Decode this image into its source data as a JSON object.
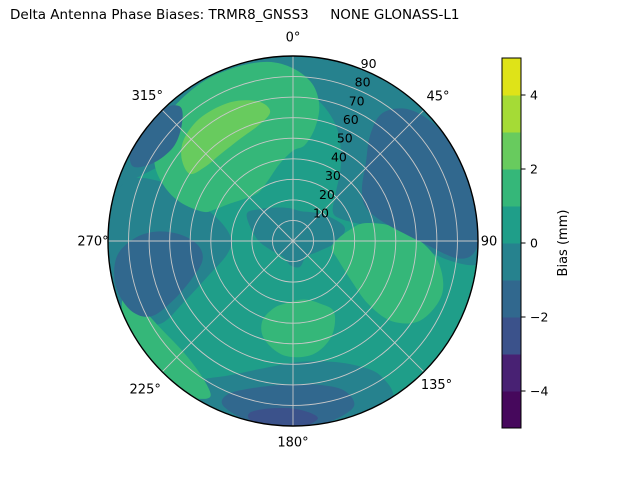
{
  "title": "Delta Antenna Phase Biases: TRMR8_GNSS3     NONE GLONASS-L1",
  "chart_data": {
    "type": "heatmap",
    "subtype": "filled-contour-polar",
    "title": "Delta Antenna Phase Biases: TRMR8_GNSS3     NONE GLONASS-L1",
    "angular_axis": {
      "zero_position": "top",
      "direction": "clockwise",
      "tick_labels": [
        "0°",
        "45°",
        "90",
        "135°",
        "180°",
        "225°",
        "270°",
        "315°"
      ],
      "tick_angles_deg": [
        0,
        45,
        90,
        135,
        180,
        225,
        270,
        315
      ]
    },
    "radial_axis": {
      "range": [
        0,
        90
      ],
      "tick_values": [
        10,
        20,
        30,
        40,
        50,
        60,
        70,
        80,
        90
      ],
      "label_azimuth_deg": 22.5,
      "grid": true,
      "grid_color": "#c8c8c8"
    },
    "colorbar": {
      "label": "Bias (mm)",
      "range": [
        -5,
        5
      ],
      "tick_values": [
        4,
        2,
        0,
        -2,
        -4
      ],
      "tick_labels": [
        "4",
        "2",
        "0",
        "−2",
        "−4"
      ],
      "band_colors_bottom_to_top": [
        "#46085c",
        "#482173",
        "#3b528b",
        "#31688e",
        "#26828e",
        "#1f9e89",
        "#35b779",
        "#68cb5e",
        "#a5db36",
        "#dfe318"
      ]
    },
    "levels_mm": [
      -5,
      -4,
      -3,
      -2,
      -1,
      0,
      1,
      2,
      3,
      4,
      5
    ],
    "base_band": {
      "level": "0 to 1",
      "color": "#1f9e89"
    },
    "regions": [
      {
        "level": "-1 to 0",
        "color": "#26828e",
        "points": [
          [
            285,
            91
          ],
          [
            300,
            91
          ],
          [
            315,
            91
          ],
          [
            330,
            91
          ],
          [
            345,
            91
          ],
          [
            0,
            91
          ],
          [
            15,
            91
          ],
          [
            30,
            91
          ],
          [
            45,
            91
          ],
          [
            60,
            91
          ],
          [
            75,
            91
          ],
          [
            90,
            91
          ],
          [
            97,
            91
          ],
          [
            97,
            76
          ],
          [
            88,
            52
          ],
          [
            78,
            36
          ],
          [
            66,
            26
          ],
          [
            54,
            24
          ],
          [
            42,
            31
          ],
          [
            32,
            44
          ],
          [
            22,
            58
          ],
          [
            12,
            68
          ],
          [
            2,
            75
          ],
          [
            352,
            80
          ],
          [
            342,
            82
          ],
          [
            332,
            80
          ],
          [
            320,
            74
          ],
          [
            310,
            70
          ],
          [
            300,
            74
          ],
          [
            292,
            82
          ]
        ]
      },
      {
        "level": "-1 to 0",
        "color": "#26828e",
        "points": [
          [
            238,
            76
          ],
          [
            244,
            86
          ],
          [
            252,
            91
          ],
          [
            262,
            92
          ],
          [
            274,
            92
          ],
          [
            284,
            90
          ],
          [
            291,
            84
          ],
          [
            294,
            72
          ],
          [
            294,
            58
          ],
          [
            290,
            44
          ],
          [
            282,
            34
          ],
          [
            270,
            30
          ],
          [
            258,
            33
          ],
          [
            248,
            44
          ],
          [
            241,
            60
          ]
        ]
      },
      {
        "level": "-1 to 0",
        "color": "#26828e",
        "points": [
          [
            300,
            26
          ],
          [
            315,
            22
          ],
          [
            335,
            18
          ],
          [
            355,
            16
          ],
          [
            15,
            15
          ],
          [
            35,
            17
          ],
          [
            55,
            21
          ],
          [
            75,
            26
          ],
          [
            90,
            22
          ],
          [
            110,
            14
          ],
          [
            140,
            10
          ],
          [
            165,
            13
          ],
          [
            185,
            12
          ],
          [
            215,
            9
          ],
          [
            250,
            12
          ],
          [
            275,
            18
          ]
        ]
      },
      {
        "level": "-1 to 0",
        "color": "#26828e",
        "points": [
          [
            148,
            91
          ],
          [
            162,
            91
          ],
          [
            176,
            91
          ],
          [
            190,
            91
          ],
          [
            204,
            91
          ],
          [
            213,
            88
          ],
          [
            214,
            82
          ],
          [
            205,
            72
          ],
          [
            192,
            63
          ],
          [
            178,
            59
          ],
          [
            164,
            61
          ],
          [
            153,
            68
          ],
          [
            147,
            78
          ]
        ]
      },
      {
        "level": "1 to 2",
        "color": "#35b779",
        "points": [
          [
            288,
            46
          ],
          [
            289,
            58
          ],
          [
            293,
            68
          ],
          [
            299,
            77
          ],
          [
            307,
            83
          ],
          [
            317,
            87
          ],
          [
            330,
            89
          ],
          [
            342,
            89
          ],
          [
            352,
            88
          ],
          [
            0,
            84
          ],
          [
            7,
            77
          ],
          [
            11,
            67
          ],
          [
            11,
            56
          ],
          [
            7,
            47
          ],
          [
            0,
            44
          ],
          [
            350,
            38
          ],
          [
            338,
            32
          ],
          [
            325,
            29
          ],
          [
            312,
            31
          ],
          [
            300,
            36
          ],
          [
            292,
            41
          ]
        ]
      },
      {
        "level": "1 to 2",
        "color": "#35b779",
        "points": [
          [
            208,
            86
          ],
          [
            214,
            91
          ],
          [
            224,
            92
          ],
          [
            236,
            92
          ],
          [
            247,
            90
          ],
          [
            252,
            86
          ],
          [
            247,
            81
          ],
          [
            236,
            77
          ],
          [
            224,
            76
          ],
          [
            213,
            80
          ]
        ]
      },
      {
        "level": "1 to 2",
        "color": "#35b779",
        "points": [
          [
            76,
            36
          ],
          [
            82,
            50
          ],
          [
            90,
            62
          ],
          [
            99,
            72
          ],
          [
            110,
            77
          ],
          [
            122,
            73
          ],
          [
            129,
            62
          ],
          [
            130,
            48
          ],
          [
            124,
            34
          ],
          [
            113,
            24
          ],
          [
            100,
            19
          ],
          [
            87,
            22
          ],
          [
            79,
            28
          ]
        ]
      },
      {
        "level": "1 to 2",
        "color": "#35b779",
        "points": [
          [
            150,
            40
          ],
          [
            158,
            50
          ],
          [
            170,
            56
          ],
          [
            184,
            56
          ],
          [
            196,
            50
          ],
          [
            201,
            42
          ],
          [
            196,
            34
          ],
          [
            184,
            30
          ],
          [
            169,
            29
          ],
          [
            157,
            33
          ]
        ]
      },
      {
        "level": "-2 to -1",
        "color": "#31688e",
        "points": [
          [
            50,
            89
          ],
          [
            62,
            91
          ],
          [
            75,
            91
          ],
          [
            87,
            91
          ],
          [
            94,
            88
          ],
          [
            96,
            80
          ],
          [
            92,
            66
          ],
          [
            86,
            54
          ],
          [
            77,
            44
          ],
          [
            65,
            39
          ],
          [
            53,
            42
          ],
          [
            43,
            52
          ],
          [
            36,
            64
          ],
          [
            35,
            76
          ],
          [
            41,
            85
          ]
        ]
      },
      {
        "level": "-2 to -1",
        "color": "#31688e",
        "points": [
          [
            242,
            78
          ],
          [
            247,
            86
          ],
          [
            256,
            89
          ],
          [
            265,
            86
          ],
          [
            271,
            77
          ],
          [
            274,
            66
          ],
          [
            273,
            54
          ],
          [
            267,
            46
          ],
          [
            258,
            45
          ],
          [
            250,
            52
          ],
          [
            244,
            64
          ]
        ]
      },
      {
        "level": "-2 to -1",
        "color": "#31688e",
        "points": [
          [
            160,
            86
          ],
          [
            170,
            90
          ],
          [
            182,
            91
          ],
          [
            194,
            90
          ],
          [
            203,
            87
          ],
          [
            203,
            81
          ],
          [
            195,
            74
          ],
          [
            183,
            70
          ],
          [
            170,
            71
          ],
          [
            161,
            77
          ]
        ]
      },
      {
        "level": "-2 to -1",
        "color": "#31688e",
        "points": [
          [
            295,
            86
          ],
          [
            300,
            91
          ],
          [
            308,
            92
          ],
          [
            316,
            90
          ],
          [
            320,
            85
          ],
          [
            316,
            78
          ],
          [
            308,
            74
          ],
          [
            299,
            78
          ]
        ]
      },
      {
        "level": "-3 to -2",
        "color": "#3b528b",
        "points": [
          [
            172,
            87
          ],
          [
            178,
            91
          ],
          [
            186,
            92
          ],
          [
            193,
            90
          ],
          [
            194,
            86
          ],
          [
            187,
            82
          ],
          [
            178,
            82
          ]
        ]
      },
      {
        "level": "2 to 3",
        "color": "#68cb5e",
        "points": [
          [
            303,
            60
          ],
          [
            307,
            68
          ],
          [
            314,
            73
          ],
          [
            324,
            75
          ],
          [
            336,
            74
          ],
          [
            346,
            70
          ],
          [
            350,
            64
          ],
          [
            344,
            59
          ],
          [
            333,
            56
          ],
          [
            320,
            55
          ],
          [
            310,
            56
          ]
        ]
      }
    ]
  }
}
